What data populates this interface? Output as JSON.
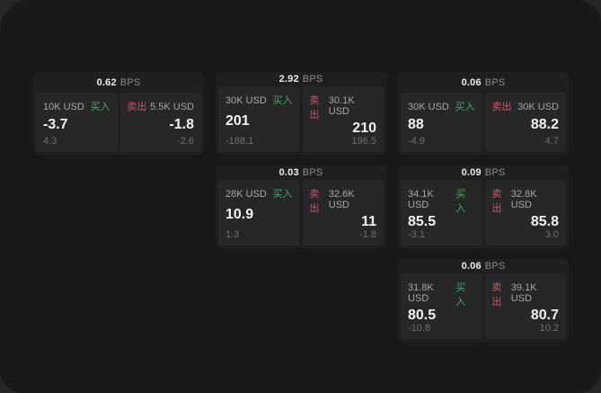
{
  "window": {
    "bps_suffix": "BPS",
    "buy_label": "买入",
    "sell_label": "卖出"
  },
  "colors": {
    "backdrop": "#262626",
    "window_bg": "#191919",
    "card_bg": "#1f1f1f",
    "panel_bg": "#272727",
    "buy_green": "#46a66d",
    "sell_red": "#c9566a"
  },
  "cards": [
    {
      "bps_value": "0.62",
      "buy": {
        "amount": "10K USD",
        "price": "-3.7",
        "delta": "4.3"
      },
      "sell": {
        "amount": "5.5K USD",
        "price": "-1.8",
        "delta": "-2.6"
      }
    },
    {
      "bps_value": "2.92",
      "buy": {
        "amount": "30K USD",
        "price": "201",
        "delta": "-188.1"
      },
      "sell": {
        "amount": "30.1K USD",
        "price": "210",
        "delta": "196.5"
      }
    },
    {
      "bps_value": "0.06",
      "buy": {
        "amount": "30K USD",
        "price": "88",
        "delta": "-4.9"
      },
      "sell": {
        "amount": "30K USD",
        "price": "88.2",
        "delta": "4.7"
      }
    },
    {
      "bps_value": "0.03",
      "buy": {
        "amount": "28K USD",
        "price": "10.9",
        "delta": "1.3"
      },
      "sell": {
        "amount": "32.6K USD",
        "price": "11",
        "delta": "-1.8"
      }
    },
    {
      "bps_value": "0.09",
      "buy": {
        "amount": "34.1K USD",
        "price": "85.5",
        "delta": "-3.1"
      },
      "sell": {
        "amount": "32.8K USD",
        "price": "85.8",
        "delta": "3.0"
      }
    },
    {
      "bps_value": "0.06",
      "buy": {
        "amount": "31.8K USD",
        "price": "80.5",
        "delta": "-10.8"
      },
      "sell": {
        "amount": "39.1K USD",
        "price": "80.7",
        "delta": "10.2"
      }
    }
  ]
}
